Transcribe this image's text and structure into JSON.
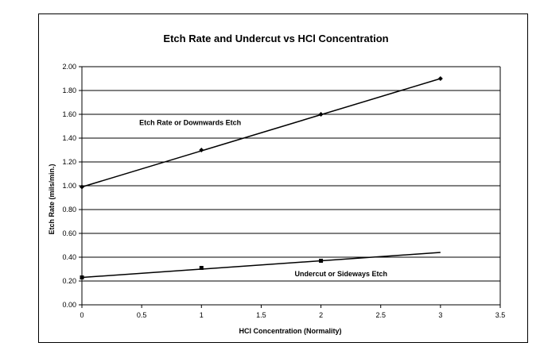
{
  "chart_data": {
    "type": "line",
    "title": "Etch Rate and Undercut vs HCl Concentration",
    "xlabel": "HCl Concentration (Normality)",
    "ylabel": "Etch Rate (mils/min.)",
    "xlim": [
      0,
      3.5
    ],
    "ylim": [
      0,
      2.0
    ],
    "x_ticks": [
      "0",
      "0.5",
      "1",
      "1.5",
      "2",
      "2.5",
      "3",
      "3.5"
    ],
    "y_ticks": [
      "0.00",
      "0.20",
      "0.40",
      "0.60",
      "0.80",
      "1.00",
      "1.20",
      "1.40",
      "1.60",
      "1.80",
      "2.00"
    ],
    "grid": "horizontal",
    "series": [
      {
        "name": "Etch Rate or Downwards Etch",
        "marker": "diamond",
        "color": "#000000",
        "x": [
          0,
          1,
          2,
          3
        ],
        "y": [
          0.99,
          1.3,
          1.6,
          1.9
        ],
        "trendline": [
          [
            0,
            0.99
          ],
          [
            3,
            1.9
          ]
        ]
      },
      {
        "name": "Undercut or Sideways Etch",
        "marker": "square",
        "color": "#000000",
        "x": [
          0,
          1,
          2
        ],
        "y": [
          0.23,
          0.31,
          0.37
        ],
        "trendline": [
          [
            0,
            0.23
          ],
          [
            3,
            0.44
          ]
        ]
      }
    ]
  }
}
